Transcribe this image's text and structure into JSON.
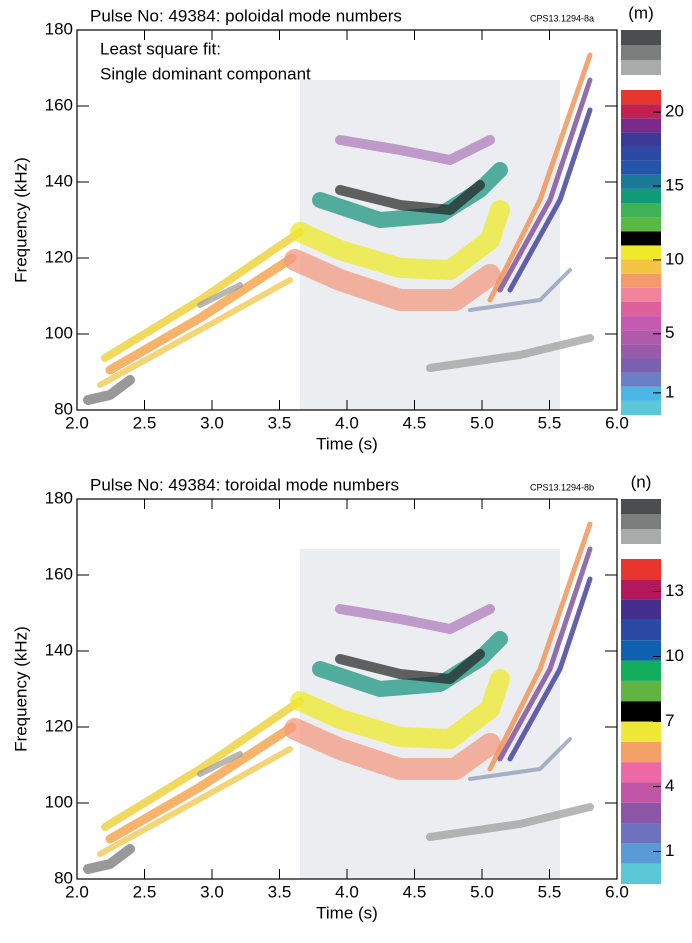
{
  "chart_data": [
    {
      "type": "spectrogram",
      "title": "Pulse No: 49384: poloidal mode numbers",
      "code": "CPS13.1294-8a",
      "annotation": [
        "Least square fit:",
        "Single dominant componant"
      ],
      "xlabel": "Time (s)",
      "ylabel": "Frequency (kHz)",
      "xlim": [
        2,
        6
      ],
      "xticks": [
        {
          "value": 2,
          "label": "2.0"
        },
        {
          "value": 2.5,
          "label": "2.5"
        },
        {
          "value": 3,
          "label": "3.0"
        },
        {
          "value": 3.5,
          "label": "3.5"
        },
        {
          "value": 4,
          "label": "4.0"
        },
        {
          "value": 4.5,
          "label": "4.5"
        },
        {
          "value": 5,
          "label": "5.0"
        },
        {
          "value": 5.5,
          "label": "5.5"
        },
        {
          "value": 6,
          "label": "6.0"
        }
      ],
      "ylim": [
        80,
        180
      ],
      "yticks": [
        80,
        100,
        120,
        140,
        160,
        180
      ],
      "colorbar": {
        "label": "(m)",
        "lim": [
          -0.5,
          21.5
        ],
        "ticks": [
          1,
          5,
          10,
          15,
          20
        ],
        "colors": [
          "#5bc8d8",
          "#4ab6e6",
          "#6a7fc4",
          "#7b5fb0",
          "#9a5aaa",
          "#b15aa8",
          "#c65ab0",
          "#e0609e",
          "#f0829a",
          "#f59a6a",
          "#f6c444",
          "#eeea2a",
          "#000000",
          "#5ab845",
          "#3fb157",
          "#119a7a",
          "#1a7a98",
          "#2355aa",
          "#2b4aa4",
          "#3c3a96",
          "#7a2a8a",
          "#c2204e",
          "#e8362e"
        ],
        "greys": [
          "#a9abab",
          "#7c7e7e",
          "#4b4d4f"
        ]
      }
    },
    {
      "type": "spectrogram",
      "title": "Pulse No: 49384: toroidal mode numbers",
      "code": "CPS13.1294-8b",
      "xlabel": "Time (s)",
      "ylabel": "Frequency (kHz)",
      "xlim": [
        2,
        6
      ],
      "xticks": [
        {
          "value": 2,
          "label": "2.0"
        },
        {
          "value": 2.5,
          "label": "2.5"
        },
        {
          "value": 3,
          "label": "3.0"
        },
        {
          "value": 3.5,
          "label": "3.5"
        },
        {
          "value": 4,
          "label": "4.0"
        },
        {
          "value": 4.5,
          "label": "4.5"
        },
        {
          "value": 5,
          "label": "5.0"
        },
        {
          "value": 5.5,
          "label": "5.5"
        },
        {
          "value": 6,
          "label": "6.0"
        }
      ],
      "ylim": [
        80,
        180
      ],
      "yticks": [
        80,
        100,
        120,
        140,
        160,
        180
      ],
      "colorbar": {
        "label": "(n)",
        "lim": [
          -0.5,
          14.5
        ],
        "ticks": [
          1,
          4,
          7,
          10,
          13
        ],
        "colors": [
          "#5bc8d8",
          "#5a9ad6",
          "#6c72bc",
          "#8b55a8",
          "#c055a6",
          "#ee68a4",
          "#f5a066",
          "#efe836",
          "#000000",
          "#62b440",
          "#13ad5e",
          "#1060b0",
          "#2a4aa6",
          "#442f8e",
          "#b3185a",
          "#e8362e"
        ],
        "greys": [
          "#a9abab",
          "#7c7e7e",
          "#4b4d4f"
        ]
      }
    }
  ]
}
